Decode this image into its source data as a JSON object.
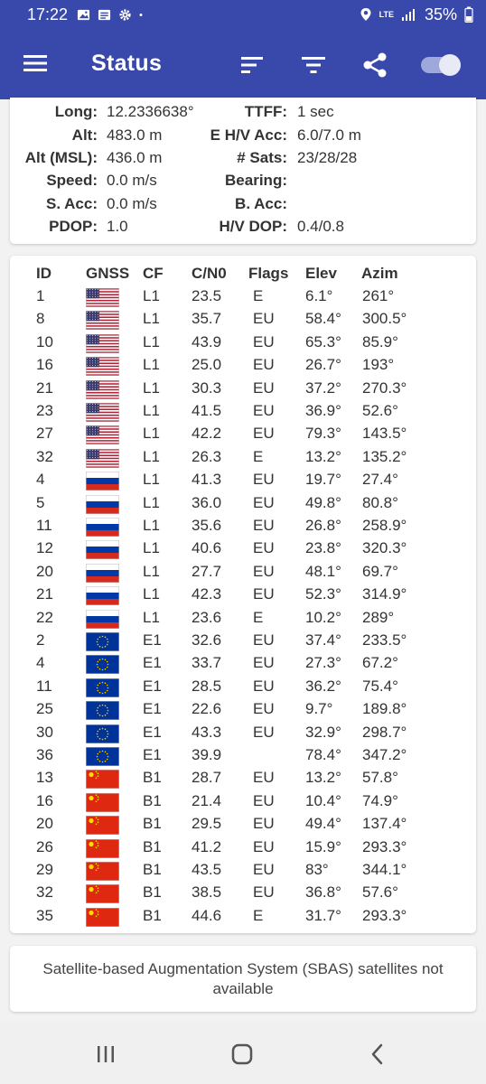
{
  "status_bar": {
    "time": "17:22",
    "network": "LTE",
    "battery": "35%"
  },
  "app_bar": {
    "title": "Status"
  },
  "location": {
    "left": [
      {
        "label": "Long:",
        "value": "12.2336638°"
      },
      {
        "label": "Alt:",
        "value": "483.0 m"
      },
      {
        "label": "Alt (MSL):",
        "value": "436.0 m"
      },
      {
        "label": "Speed:",
        "value": "0.0 m/s"
      },
      {
        "label": "S. Acc:",
        "value": "0.0 m/s"
      },
      {
        "label": "PDOP:",
        "value": "1.0"
      }
    ],
    "right": [
      {
        "label": "TTFF:",
        "value": "1 sec"
      },
      {
        "label": "E H/V Acc:",
        "value": "6.0/7.0 m"
      },
      {
        "label": "# Sats:",
        "value": "23/28/28"
      },
      {
        "label": "Bearing:",
        "value": ""
      },
      {
        "label": "B. Acc:",
        "value": ""
      },
      {
        "label": "H/V DOP:",
        "value": "0.4/0.8"
      }
    ]
  },
  "satellites": {
    "headers": {
      "id": "ID",
      "gnss": "GNSS",
      "cf": "CF",
      "cn0": "C/N0",
      "flags": "Flags",
      "elev": "Elev",
      "azim": "Azim"
    },
    "rows": [
      {
        "id": "1",
        "flag": "us",
        "cf": "L1",
        "cn0": "23.5",
        "flags": "E",
        "elev": "6.1°",
        "azim": "261°"
      },
      {
        "id": "8",
        "flag": "us",
        "cf": "L1",
        "cn0": "35.7",
        "flags": "EU",
        "elev": "58.4°",
        "azim": "300.5°"
      },
      {
        "id": "10",
        "flag": "us",
        "cf": "L1",
        "cn0": "43.9",
        "flags": "EU",
        "elev": "65.3°",
        "azim": "85.9°"
      },
      {
        "id": "16",
        "flag": "us",
        "cf": "L1",
        "cn0": "25.0",
        "flags": "EU",
        "elev": "26.7°",
        "azim": "193°"
      },
      {
        "id": "21",
        "flag": "us",
        "cf": "L1",
        "cn0": "30.3",
        "flags": "EU",
        "elev": "37.2°",
        "azim": "270.3°"
      },
      {
        "id": "23",
        "flag": "us",
        "cf": "L1",
        "cn0": "41.5",
        "flags": "EU",
        "elev": "36.9°",
        "azim": "52.6°"
      },
      {
        "id": "27",
        "flag": "us",
        "cf": "L1",
        "cn0": "42.2",
        "flags": "EU",
        "elev": "79.3°",
        "azim": "143.5°"
      },
      {
        "id": "32",
        "flag": "us",
        "cf": "L1",
        "cn0": "26.3",
        "flags": "E",
        "elev": "13.2°",
        "azim": "135.2°"
      },
      {
        "id": "4",
        "flag": "ru",
        "cf": "L1",
        "cn0": "41.3",
        "flags": "EU",
        "elev": "19.7°",
        "azim": "27.4°"
      },
      {
        "id": "5",
        "flag": "ru",
        "cf": "L1",
        "cn0": "36.0",
        "flags": "EU",
        "elev": "49.8°",
        "azim": "80.8°"
      },
      {
        "id": "11",
        "flag": "ru",
        "cf": "L1",
        "cn0": "35.6",
        "flags": "EU",
        "elev": "26.8°",
        "azim": "258.9°"
      },
      {
        "id": "12",
        "flag": "ru",
        "cf": "L1",
        "cn0": "40.6",
        "flags": "EU",
        "elev": "23.8°",
        "azim": "320.3°"
      },
      {
        "id": "20",
        "flag": "ru",
        "cf": "L1",
        "cn0": "27.7",
        "flags": "EU",
        "elev": "48.1°",
        "azim": "69.7°"
      },
      {
        "id": "21",
        "flag": "ru",
        "cf": "L1",
        "cn0": "42.3",
        "flags": "EU",
        "elev": "52.3°",
        "azim": "314.9°"
      },
      {
        "id": "22",
        "flag": "ru",
        "cf": "L1",
        "cn0": "23.6",
        "flags": "E",
        "elev": "10.2°",
        "azim": "289°"
      },
      {
        "id": "2",
        "flag": "eu",
        "cf": "E1",
        "cn0": "32.6",
        "flags": "EU",
        "elev": "37.4°",
        "azim": "233.5°"
      },
      {
        "id": "4",
        "flag": "eu",
        "cf": "E1",
        "cn0": "33.7",
        "flags": "EU",
        "elev": "27.3°",
        "azim": "67.2°"
      },
      {
        "id": "11",
        "flag": "eu",
        "cf": "E1",
        "cn0": "28.5",
        "flags": "EU",
        "elev": "36.2°",
        "azim": "75.4°"
      },
      {
        "id": "25",
        "flag": "eu",
        "cf": "E1",
        "cn0": "22.6",
        "flags": "EU",
        "elev": "9.7°",
        "azim": "189.8°"
      },
      {
        "id": "30",
        "flag": "eu",
        "cf": "E1",
        "cn0": "43.3",
        "flags": "EU",
        "elev": "32.9°",
        "azim": "298.7°"
      },
      {
        "id": "36",
        "flag": "eu",
        "cf": "E1",
        "cn0": "39.9",
        "flags": "",
        "elev": "78.4°",
        "azim": "347.2°"
      },
      {
        "id": "13",
        "flag": "cn",
        "cf": "B1",
        "cn0": "28.7",
        "flags": "EU",
        "elev": "13.2°",
        "azim": "57.8°"
      },
      {
        "id": "16",
        "flag": "cn",
        "cf": "B1",
        "cn0": "21.4",
        "flags": "EU",
        "elev": "10.4°",
        "azim": "74.9°"
      },
      {
        "id": "20",
        "flag": "cn",
        "cf": "B1",
        "cn0": "29.5",
        "flags": "EU",
        "elev": "49.4°",
        "azim": "137.4°"
      },
      {
        "id": "26",
        "flag": "cn",
        "cf": "B1",
        "cn0": "41.2",
        "flags": "EU",
        "elev": "15.9°",
        "azim": "293.3°"
      },
      {
        "id": "29",
        "flag": "cn",
        "cf": "B1",
        "cn0": "43.5",
        "flags": "EU",
        "elev": "83°",
        "azim": "344.1°"
      },
      {
        "id": "32",
        "flag": "cn",
        "cf": "B1",
        "cn0": "38.5",
        "flags": "EU",
        "elev": "36.8°",
        "azim": "57.6°"
      },
      {
        "id": "35",
        "flag": "cn",
        "cf": "B1",
        "cn0": "44.6",
        "flags": "E",
        "elev": "31.7°",
        "azim": "293.3°"
      }
    ]
  },
  "sbas": {
    "message": "Satellite-based Augmentation System (SBAS) satellites not available"
  },
  "colors": {
    "primary": "#3949ab",
    "toggle_thumb": "#e8eaf6",
    "toggle_track": "#9fa8da"
  },
  "icons": [
    "photo-icon",
    "news-icon",
    "gear-icon",
    "dot-icon",
    "location-icon",
    "signal-icon",
    "battery-icon",
    "menu-icon",
    "sort-icon",
    "filter-icon",
    "share-icon",
    "toggle-switch",
    "recents-icon",
    "home-icon",
    "back-icon"
  ]
}
